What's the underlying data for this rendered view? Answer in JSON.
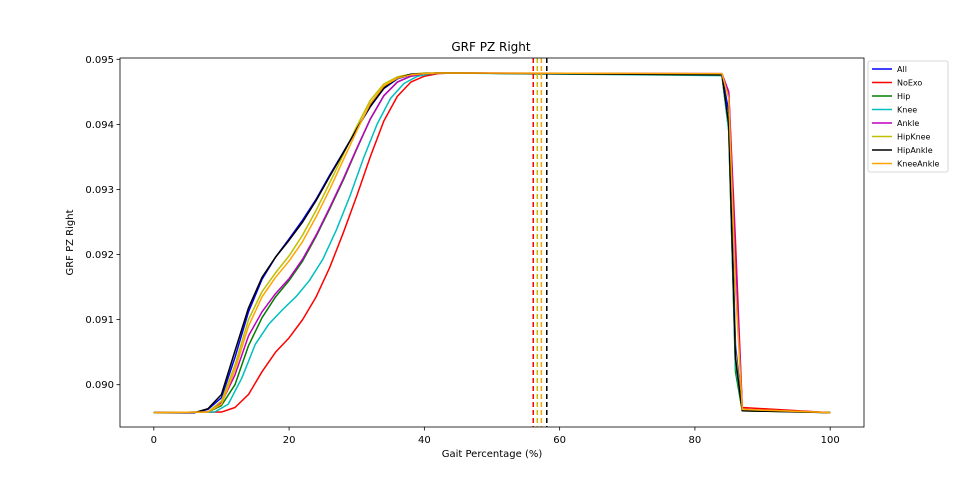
{
  "chart_data": {
    "type": "line",
    "title": "GRF PZ Right",
    "xlabel": "Gait Percentage (%)",
    "ylabel": "GRF PZ Right",
    "xlim": [
      -5,
      105
    ],
    "ylim": [
      0.08935,
      0.09502
    ],
    "xticks": [
      0,
      20,
      40,
      60,
      80,
      100
    ],
    "yticks": [
      0.09,
      0.091,
      0.092,
      0.093,
      0.094,
      0.095
    ],
    "ytick_labels": [
      "0.090",
      "0.091",
      "0.092",
      "0.093",
      "0.094",
      "0.095"
    ],
    "legend_position": "outside-top-right",
    "grid": false,
    "series": [
      {
        "name": "All",
        "color": "#0000ff",
        "x": [
          0,
          6,
          8,
          10,
          12,
          14,
          16,
          18,
          20,
          22,
          24,
          26,
          28,
          30,
          32,
          34,
          36,
          38,
          40,
          42,
          44,
          84,
          85,
          86,
          87,
          100
        ],
        "y": [
          0.08957,
          0.08957,
          0.08962,
          0.0898,
          0.09042,
          0.09112,
          0.09162,
          0.09196,
          0.09224,
          0.09253,
          0.09285,
          0.09322,
          0.09357,
          0.09393,
          0.09427,
          0.09455,
          0.0947,
          0.09476,
          0.09478,
          0.09479,
          0.09479,
          0.09476,
          0.0942,
          0.0906,
          0.08962,
          0.08957
        ]
      },
      {
        "name": "NoExo",
        "color": "#ff0000",
        "x": [
          0,
          10,
          12,
          14,
          16,
          18,
          20,
          22,
          24,
          26,
          28,
          30,
          32,
          34,
          36,
          38,
          40,
          42,
          44,
          84,
          85,
          86,
          87,
          100
        ],
        "y": [
          0.08957,
          0.08958,
          0.08965,
          0.08985,
          0.0902,
          0.0905,
          0.09072,
          0.091,
          0.09135,
          0.0918,
          0.09233,
          0.0929,
          0.0935,
          0.09405,
          0.09443,
          0.09465,
          0.09474,
          0.09478,
          0.09479,
          0.09477,
          0.0945,
          0.0922,
          0.08965,
          0.08957
        ]
      },
      {
        "name": "Hip",
        "color": "#008000",
        "x": [
          0,
          8,
          10,
          12,
          14,
          16,
          18,
          20,
          22,
          24,
          26,
          28,
          30,
          32,
          34,
          36,
          38,
          40,
          42,
          44,
          84,
          85,
          86,
          87,
          100
        ],
        "y": [
          0.08957,
          0.08958,
          0.08968,
          0.09,
          0.0906,
          0.09103,
          0.09135,
          0.0916,
          0.0919,
          0.09228,
          0.0927,
          0.09314,
          0.09362,
          0.09408,
          0.09444,
          0.09465,
          0.09474,
          0.09478,
          0.09479,
          0.09479,
          0.09476,
          0.0939,
          0.0902,
          0.0896,
          0.08957
        ]
      },
      {
        "name": "Knee",
        "color": "#00bfbf",
        "x": [
          0,
          9,
          11,
          13,
          15,
          17,
          19,
          21,
          23,
          25,
          27,
          29,
          31,
          33,
          35,
          37,
          39,
          41,
          43,
          84,
          85,
          86,
          87,
          100
        ],
        "y": [
          0.08957,
          0.08958,
          0.0897,
          0.0901,
          0.09062,
          0.09093,
          0.09115,
          0.09135,
          0.0916,
          0.09193,
          0.09238,
          0.0929,
          0.09348,
          0.094,
          0.0944,
          0.09463,
          0.09474,
          0.09478,
          0.09479,
          0.09475,
          0.0939,
          0.0903,
          0.08962,
          0.08957
        ]
      },
      {
        "name": "Ankle",
        "color": "#bf00bf",
        "x": [
          0,
          8,
          10,
          12,
          14,
          16,
          18,
          20,
          22,
          24,
          26,
          28,
          30,
          32,
          34,
          36,
          38,
          40,
          42,
          44,
          84,
          85,
          86,
          87,
          100
        ],
        "y": [
          0.08957,
          0.08958,
          0.08972,
          0.09015,
          0.09075,
          0.09112,
          0.0914,
          0.09163,
          0.09193,
          0.0923,
          0.09272,
          0.09316,
          0.09363,
          0.09408,
          0.09444,
          0.09465,
          0.09474,
          0.09478,
          0.09479,
          0.09479,
          0.09478,
          0.0945,
          0.092,
          0.08962,
          0.08957
        ]
      },
      {
        "name": "HipKnee",
        "color": "#bfbf00",
        "x": [
          0,
          8,
          10,
          12,
          14,
          16,
          18,
          20,
          22,
          24,
          26,
          28,
          30,
          32,
          34,
          36,
          38,
          40,
          42,
          44,
          84,
          85,
          86,
          87,
          100
        ],
        "y": [
          0.08957,
          0.08958,
          0.08975,
          0.0903,
          0.091,
          0.09143,
          0.09172,
          0.09198,
          0.0923,
          0.09268,
          0.0931,
          0.09353,
          0.09397,
          0.09437,
          0.09462,
          0.09473,
          0.09477,
          0.09479,
          0.09479,
          0.09479,
          0.09476,
          0.094,
          0.0905,
          0.08962,
          0.08957
        ]
      },
      {
        "name": "HipAnkle",
        "color": "#000000",
        "x": [
          0,
          6,
          8,
          10,
          12,
          14,
          16,
          18,
          20,
          22,
          24,
          26,
          28,
          30,
          32,
          34,
          36,
          38,
          40,
          42,
          44,
          84,
          85,
          86,
          87,
          100
        ],
        "y": [
          0.08957,
          0.08957,
          0.08963,
          0.08985,
          0.09052,
          0.09118,
          0.09165,
          0.09196,
          0.09222,
          0.0925,
          0.09283,
          0.0932,
          0.09356,
          0.09393,
          0.09428,
          0.09456,
          0.09471,
          0.09477,
          0.09478,
          0.09479,
          0.09479,
          0.09476,
          0.094,
          0.0904,
          0.0896,
          0.08957
        ]
      },
      {
        "name": "KneeAnkle",
        "color": "#ffa500",
        "x": [
          0,
          8,
          10,
          12,
          14,
          16,
          18,
          20,
          22,
          24,
          26,
          28,
          30,
          32,
          34,
          36,
          38,
          40,
          42,
          44,
          84,
          85,
          86,
          87,
          100
        ],
        "y": [
          0.08957,
          0.08958,
          0.0897,
          0.09023,
          0.0909,
          0.09135,
          0.09165,
          0.0919,
          0.0922,
          0.09258,
          0.093,
          0.09345,
          0.0939,
          0.09432,
          0.09459,
          0.09471,
          0.09476,
          0.09478,
          0.09479,
          0.09479,
          0.09478,
          0.0944,
          0.0915,
          0.08962,
          0.08957
        ]
      }
    ],
    "vlines": [
      {
        "x": 56.1,
        "color": "#ff0000",
        "style": "dashed"
      },
      {
        "x": 56.7,
        "color": "#bfbf00",
        "style": "dashed"
      },
      {
        "x": 57.3,
        "color": "#ffa500",
        "style": "dashed"
      },
      {
        "x": 58.1,
        "color": "#000000",
        "style": "dashed"
      }
    ]
  }
}
